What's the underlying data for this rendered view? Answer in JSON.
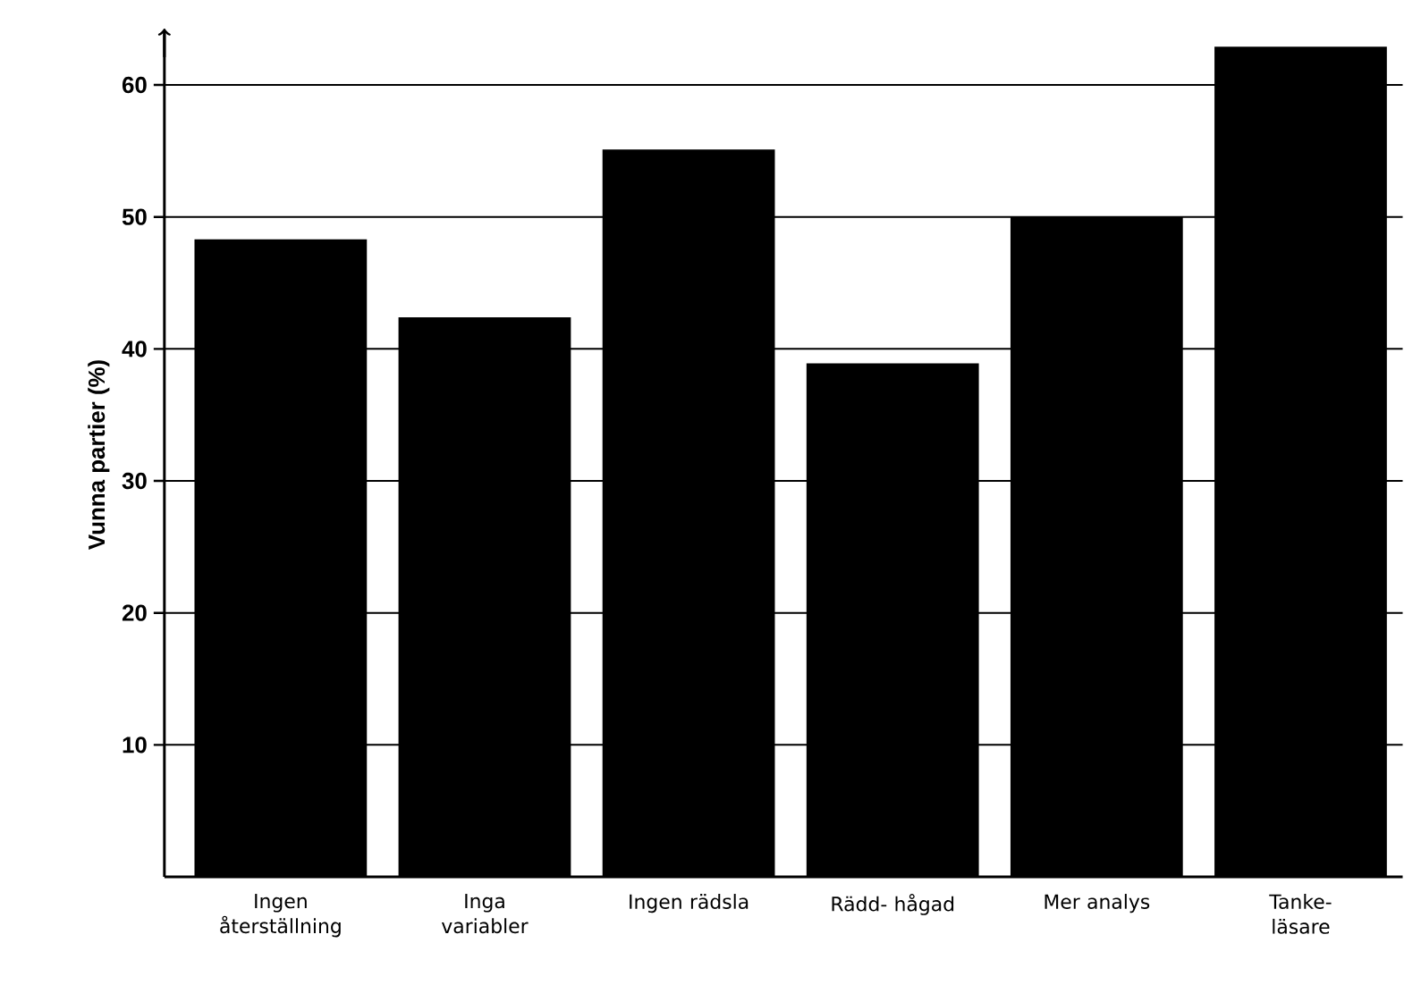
{
  "chart_data": {
    "type": "bar",
    "ylabel": "Vunna partier (%)",
    "categories": [
      "Ingen återställning",
      "Inga variabler",
      "Ingen rädsla",
      "Rädd- hågad",
      "Mer analys",
      "Tanke- läsare"
    ],
    "values": [
      48.3,
      42.4,
      55.1,
      38.9,
      50,
      62.9
    ],
    "color": "#000000",
    "ylim": [
      0,
      64
    ],
    "yticks": [
      10,
      20,
      30,
      40,
      50,
      60
    ],
    "grid": "y"
  }
}
